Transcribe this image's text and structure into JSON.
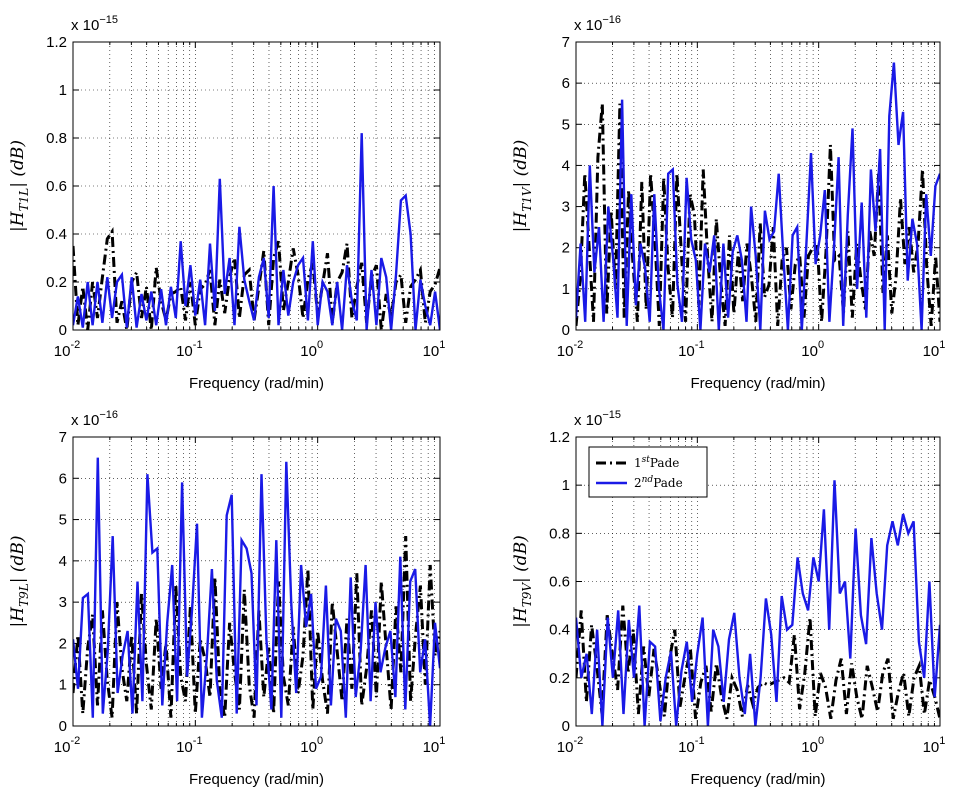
{
  "chart_data": [
    {
      "type": "line",
      "xlabel": "Frequency (rad/min)",
      "ylabel": "|H_T1L| (dB)",
      "xscale": "log",
      "xlim": [
        0.01,
        10
      ],
      "ylim": [
        0,
        1.2
      ],
      "yticks": [
        "0",
        "0.2",
        "0.4",
        "0.6",
        "0.8",
        "1",
        "1.2"
      ],
      "multiplier": "x 10",
      "multiplier_exp": "−15",
      "grid": true,
      "series": [
        {
          "values": [
            0.35,
            0.02,
            0.18,
            0.0,
            0.2,
            0.05,
            0.22,
            0.38,
            0.41,
            0.03,
            0.12,
            0.0,
            0.2,
            0.24,
            0.05,
            0.18,
            0.0,
            0.26,
            0.12,
            0.04,
            0.15,
            0.16,
            0.18,
            0.04,
            0.2,
            0.02,
            0.17,
            0.19,
            0.25,
            0.02,
            0.21,
            0.07,
            0.22,
            0.3,
            0.05,
            0.23,
            0.25,
            0.04,
            0.18,
            0.33,
            0.02,
            0.3,
            0.37,
            0.08,
            0.2,
            0.34,
            0.23,
            0.05,
            0.21,
            0.28,
            0.06,
            0.19,
            0.32,
            0.03,
            0.2,
            0.24,
            0.36,
            0.05,
            0.18,
            0.28,
            0.03,
            0.22,
            0.27,
            0.0,
            0.15,
            0.05,
            0.2,
            0.23,
            0.03,
            0.18,
            0.21,
            0.25,
            0.03,
            0.16,
            0.19,
            0.26
          ]
        },
        {
          "values": [
            0.02,
            0.14,
            0.01,
            0.2,
            0.02,
            0.2,
            0.03,
            0.22,
            0.05,
            0.2,
            0.23,
            0.01,
            0.22,
            0.01,
            0.15,
            0.04,
            0.16,
            0.02,
            0.17,
            0.02,
            0.18,
            0.05,
            0.37,
            0.1,
            0.27,
            0.06,
            0.21,
            0.02,
            0.36,
            0.08,
            0.63,
            0.15,
            0.3,
            0.02,
            0.43,
            0.21,
            0.12,
            0.04,
            0.22,
            0.3,
            0.05,
            0.6,
            0.02,
            0.25,
            0.06,
            0.2,
            0.27,
            0.3,
            0.04,
            0.37,
            0.02,
            0.2,
            0.16,
            0.02,
            0.2,
            0.0,
            0.27,
            0.12,
            0.04,
            0.82,
            0.0,
            0.25,
            0.02,
            0.3,
            0.22,
            0.0,
            0.23,
            0.54,
            0.56,
            0.4,
            0.0,
            0.21,
            0.1,
            0.02,
            0.16,
            0.0
          ]
        }
      ]
    },
    {
      "type": "line",
      "xlabel": "Frequency (rad/min)",
      "ylabel": "|H_T1V| (dB)",
      "xscale": "log",
      "xlim": [
        0.01,
        10
      ],
      "ylim": [
        0,
        7
      ],
      "yticks": [
        "0",
        "1",
        "2",
        "3",
        "4",
        "5",
        "6",
        "7"
      ],
      "multiplier": "x 10",
      "multiplier_exp": "−16",
      "grid": true,
      "series": [
        {
          "values": [
            0.1,
            1.3,
            3.8,
            2.0,
            0.2,
            4.2,
            5.5,
            0.4,
            2.9,
            1.0,
            5.5,
            0.3,
            3.4,
            1.6,
            0.2,
            3.6,
            0.5,
            3.8,
            2.2,
            0.1,
            3.7,
            1.5,
            0.3,
            3.8,
            1.9,
            0.2,
            3.3,
            2.8,
            0.6,
            3.9,
            1.8,
            0.2,
            2.7,
            1.2,
            0.1,
            2.3,
            0.4,
            1.9,
            0.7,
            2.1,
            1.3,
            0.2,
            2.6,
            0.8,
            1.1,
            2.5,
            0.1,
            1.7,
            2.0,
            0.5,
            1.6,
            1.8,
            0.3,
            1.8,
            2.0,
            2.1,
            0.2,
            1.9,
            4.5,
            1.7,
            1.8,
            0.4,
            2.4,
            0.3,
            2.1,
            1.2,
            0.5,
            2.4,
            1.8,
            3.8,
            0.9,
            2.3,
            0.4,
            1.3,
            3.2,
            1.6,
            2.5,
            1.4,
            2.1,
            3.9,
            1.5,
            0.1,
            1.8,
            0.2
          ]
        },
        {
          "values": [
            0.3,
            2.1,
            0.2,
            4.0,
            1.4,
            2.5,
            0.2,
            3.0,
            1.8,
            0.3,
            5.6,
            0.1,
            3.3,
            0.6,
            2.1,
            1.5,
            0.2,
            3.3,
            1.0,
            0.0,
            3.8,
            3.9,
            1.1,
            0.2,
            3.7,
            2.2,
            1.7,
            0.0,
            2.1,
            1.4,
            2.3,
            0.0,
            2.1,
            0.3,
            1.9,
            2.3,
            1.7,
            0.2,
            3.0,
            1.8,
            0.0,
            2.9,
            2.2,
            2.4,
            3.8,
            1.8,
            0.0,
            2.3,
            2.5,
            0.0,
            2.1,
            4.3,
            1.6,
            2.3,
            3.4,
            0.2,
            2.0,
            4.2,
            0.1,
            2.8,
            4.9,
            1.0,
            3.1,
            0.3,
            3.9,
            2.4,
            4.4,
            0.0,
            5.2,
            6.5,
            4.5,
            5.3,
            1.2,
            2.7,
            2.1,
            0.0,
            3.3,
            1.8,
            3.5,
            3.8
          ]
        }
      ]
    },
    {
      "type": "line",
      "xlabel": "Frequency (rad/min)",
      "ylabel": "|H_T9L| (dB)",
      "xscale": "log",
      "xlim": [
        0.01,
        10
      ],
      "ylim": [
        0,
        7
      ],
      "yticks": [
        "0",
        "1",
        "2",
        "3",
        "4",
        "5",
        "6",
        "7"
      ],
      "multiplier": "x 10",
      "multiplier_exp": "−16",
      "grid": true,
      "series": [
        {
          "values": [
            0.8,
            2.2,
            0.3,
            1.9,
            2.7,
            0.5,
            2.8,
            1.1,
            0.2,
            3.0,
            1.4,
            0.6,
            2.2,
            0.3,
            3.2,
            1.5,
            0.4,
            2.6,
            0.9,
            2.0,
            0.2,
            3.4,
            1.2,
            0.6,
            2.9,
            0.3,
            2.1,
            1.6,
            0.7,
            3.6,
            0.9,
            0.2,
            2.5,
            1.3,
            0.4,
            3.3,
            1.0,
            0.2,
            2.8,
            0.7,
            1.9,
            0.3,
            3.5,
            1.2,
            0.5,
            2.4,
            0.8,
            1.7,
            3.8,
            0.4,
            2.3,
            1.1,
            0.3,
            3.0,
            1.8,
            0.6,
            2.6,
            0.9,
            3.7,
            0.5,
            1.4,
            2.8,
            0.7,
            3.5,
            1.9,
            0.4,
            2.9,
            1.3,
            4.6,
            0.6,
            2.2,
            3.4,
            1.0,
            3.9,
            1.7,
            2.3
          ]
        },
        {
          "values": [
            2.1,
            0.9,
            3.1,
            3.2,
            0.2,
            6.5,
            0.3,
            1.8,
            4.6,
            0.8,
            1.7,
            2.3,
            0.3,
            3.5,
            0.6,
            6.1,
            4.2,
            4.3,
            0.5,
            2.5,
            3.9,
            0.6,
            5.9,
            1.2,
            2.8,
            4.9,
            0.2,
            1.7,
            3.8,
            1.1,
            0.2,
            5.1,
            5.6,
            0.3,
            4.5,
            4.3,
            3.7,
            0.5,
            6.1,
            2.1,
            0.4,
            4.5,
            0.2,
            6.4,
            3.0,
            0.8,
            3.9,
            2.4,
            3.2,
            0.9,
            1.2,
            3.4,
            0.5,
            2.6,
            2.3,
            0.2,
            3.6,
            0.7,
            1.8,
            3.9,
            0.6,
            3.0,
            1.3,
            1.9,
            2.3,
            0.7,
            4.1,
            0.4,
            3.5,
            3.8,
            1.3,
            2.1,
            0.0,
            2.5,
            1.4
          ]
        }
      ]
    },
    {
      "type": "line",
      "xlabel": "Frequency (rad/min)",
      "ylabel": "|H_T9V| (dB)",
      "xscale": "log",
      "xlim": [
        0.01,
        10
      ],
      "ylim": [
        0,
        1.2
      ],
      "yticks": [
        "0",
        "0.2",
        "0.4",
        "0.6",
        "0.8",
        "1",
        "1.2"
      ],
      "multiplier": "x 10",
      "multiplier_exp": "−15",
      "grid": true,
      "legend": {
        "position": "top-left",
        "entries": [
          {
            "prefix": "1",
            "sup": "st",
            "suffix": "Pade"
          },
          {
            "prefix": "2",
            "sup": "nd",
            "suffix": "Pade"
          }
        ]
      },
      "series": [
        {
          "values": [
            0.2,
            0.48,
            0.1,
            0.42,
            0.25,
            0.05,
            0.46,
            0.3,
            0.15,
            0.5,
            0.22,
            0.4,
            0.05,
            0.33,
            0.12,
            0.32,
            0.18,
            0.04,
            0.28,
            0.4,
            0.08,
            0.21,
            0.32,
            0.03,
            0.18,
            0.25,
            0.06,
            0.26,
            0.12,
            0.03,
            0.2,
            0.15,
            0.04,
            0.17,
            0.09,
            0.16,
            0.18,
            0.17,
            0.18,
            0.19,
            0.2,
            0.18,
            0.38,
            0.07,
            0.22,
            0.45,
            0.04,
            0.22,
            0.16,
            0.03,
            0.19,
            0.28,
            0.05,
            0.26,
            0.12,
            0.03,
            0.25,
            0.16,
            0.06,
            0.22,
            0.28,
            0.03,
            0.14,
            0.22,
            0.04,
            0.2,
            0.25,
            0.05,
            0.19,
            0.12,
            0.03
          ]
        },
        {
          "values": [
            0.45,
            0.2,
            0.3,
            0.05,
            0.4,
            0.0,
            0.45,
            0.2,
            0.48,
            0.05,
            0.44,
            0.2,
            0.5,
            0.0,
            0.35,
            0.33,
            0.02,
            0.2,
            0.31,
            0.0,
            0.23,
            0.35,
            0.1,
            0.3,
            0.45,
            0.0,
            0.4,
            0.33,
            0.1,
            0.36,
            0.47,
            0.2,
            0.05,
            0.3,
            0.0,
            0.2,
            0.53,
            0.38,
            0.1,
            0.54,
            0.4,
            0.42,
            0.7,
            0.55,
            0.48,
            0.7,
            0.6,
            0.9,
            0.4,
            1.02,
            0.55,
            0.6,
            0.28,
            0.82,
            0.46,
            0.34,
            0.78,
            0.55,
            0.4,
            0.75,
            0.85,
            0.75,
            0.88,
            0.8,
            0.85,
            0.35,
            0.2,
            0.6,
            0.12,
            0.42
          ]
        }
      ]
    }
  ]
}
